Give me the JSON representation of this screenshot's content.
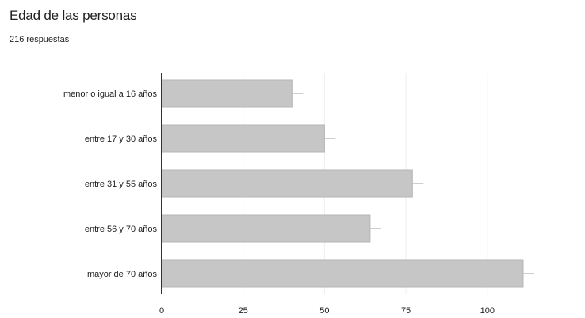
{
  "header": {
    "title": "Edad de las personas",
    "subtitle": "216 respuestas"
  },
  "chart_data": {
    "type": "bar",
    "orientation": "horizontal",
    "categories": [
      "menor o igual a 16 años",
      "entre 17 y 30 años",
      "entre 31 y 55 años",
      "entre 56 y 70 años",
      "mayor de 70 años"
    ],
    "values": [
      40,
      50,
      77,
      64,
      111
    ],
    "xlim": [
      0,
      130
    ],
    "xticks": [
      "0",
      "25",
      "50",
      "75",
      "100"
    ],
    "grid": true,
    "colors": {
      "bar": "#c6c6c6",
      "bar_stroke": "#b5b5b5",
      "axis": "#333333",
      "grid": "#eeeeee",
      "error_bar": "#bdbdbd"
    }
  }
}
